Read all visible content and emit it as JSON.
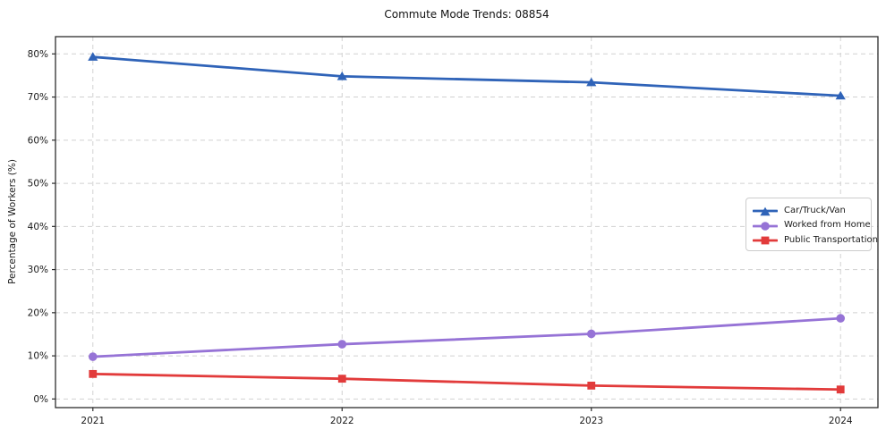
{
  "chart_data": {
    "type": "line",
    "title": "Commute Mode Trends: 08854",
    "xlabel": "",
    "ylabel": "Percentage of Workers (%)",
    "categories": [
      2021,
      2022,
      2023,
      2024
    ],
    "x_tick_labels": [
      "2021",
      "2022",
      "2023",
      "2024"
    ],
    "yticks": [
      0,
      10,
      20,
      30,
      40,
      50,
      60,
      70,
      80
    ],
    "y_tick_labels": [
      "0%",
      "10%",
      "20%",
      "30%",
      "40%",
      "50%",
      "60%",
      "70%",
      "80%"
    ],
    "xlim": [
      2020.85,
      2024.15
    ],
    "ylim": [
      -2,
      84
    ],
    "grid": true,
    "grid_style": "dashed",
    "legend_position": "center right",
    "series": [
      {
        "name": "Car/Truck/Van",
        "color": "#2f63b8",
        "marker": "triangle",
        "values": [
          79.3,
          74.8,
          73.4,
          70.3
        ]
      },
      {
        "name": "Worked from Home",
        "color": "#9673d6",
        "marker": "circle",
        "values": [
          9.8,
          12.7,
          15.1,
          18.7
        ]
      },
      {
        "name": "Public Transportation",
        "color": "#e23b3b",
        "marker": "square",
        "values": [
          5.8,
          4.7,
          3.1,
          2.2
        ]
      }
    ],
    "style": {
      "grid_color": "#d1d1d1",
      "frame_color": "#2d2d2d",
      "tick_label_color": "#1a1a1a",
      "background": "#ffffff"
    }
  }
}
